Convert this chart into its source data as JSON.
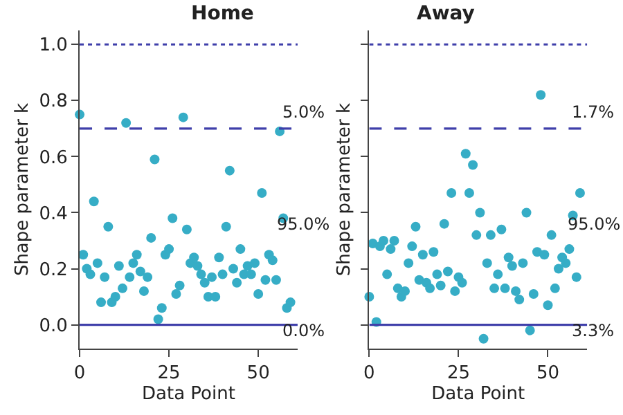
{
  "chart_data": [
    {
      "type": "scatter",
      "title": "Home",
      "xlabel": "Data Point",
      "ylabel": "Shape parameter k",
      "color": "#36adc6",
      "marker": "circle",
      "x": [
        0,
        1,
        2,
        3,
        4,
        5,
        6,
        7,
        8,
        9,
        10,
        11,
        12,
        13,
        14,
        15,
        16,
        17,
        18,
        19,
        20,
        21,
        22,
        23,
        24,
        25,
        26,
        27,
        28,
        29,
        30,
        31,
        32,
        33,
        34,
        35,
        36,
        37,
        38,
        39,
        40,
        41,
        42,
        43,
        44,
        45,
        46,
        47,
        48,
        49,
        50,
        51,
        52,
        53,
        54,
        55,
        56,
        57,
        58,
        59
      ],
      "values": [
        0.75,
        0.25,
        0.2,
        0.18,
        0.44,
        0.22,
        0.08,
        0.17,
        0.35,
        0.08,
        0.1,
        0.21,
        0.13,
        0.72,
        0.17,
        0.22,
        0.25,
        0.19,
        0.12,
        0.17,
        0.31,
        0.59,
        0.02,
        0.06,
        0.25,
        0.27,
        0.38,
        0.11,
        0.14,
        0.74,
        0.34,
        0.22,
        0.24,
        0.21,
        0.18,
        0.15,
        0.1,
        0.17,
        0.1,
        0.24,
        0.18,
        0.35,
        0.55,
        0.2,
        0.15,
        0.27,
        0.18,
        0.21,
        0.18,
        0.22,
        0.11,
        0.47,
        0.16,
        0.25,
        0.23,
        0.16,
        0.69,
        0.38,
        0.06,
        0.08
      ],
      "xlim": [
        0,
        61
      ],
      "ylim": [
        -0.085,
        1.05
      ],
      "xticks": [
        0,
        25,
        50
      ],
      "yticks": [
        {
          "value": 0,
          "label": "0.0"
        },
        {
          "value": 0.2,
          "label": "0.2"
        },
        {
          "value": 0.4,
          "label": "0.4"
        },
        {
          "value": 0.6,
          "label": "0.6"
        },
        {
          "value": 0.8,
          "label": "0.8"
        },
        {
          "value": 1.0,
          "label": "1.0"
        }
      ],
      "ref_lines": [
        {
          "axis": "y",
          "value": 1.0,
          "color": "#3f3faa",
          "line_style": "dotted"
        },
        {
          "axis": "y",
          "value": 0.7,
          "color": "#3f3faa",
          "line_style": "dashed"
        },
        {
          "axis": "y",
          "value": 0,
          "color": "#3f3faa",
          "line_style": "solid"
        }
      ],
      "annotations": [
        "5.0%",
        "95.0%",
        "0.0%"
      ]
    },
    {
      "type": "scatter",
      "title": "Away",
      "xlabel": "Data Point",
      "ylabel": "Shape parameter k",
      "color": "#36adc6",
      "marker": "circle",
      "tick_labels": "x",
      "x": [
        0,
        1,
        2,
        3,
        4,
        5,
        6,
        7,
        8,
        9,
        10,
        11,
        12,
        13,
        14,
        15,
        16,
        17,
        18,
        19,
        20,
        21,
        22,
        23,
        24,
        25,
        26,
        27,
        28,
        29,
        30,
        31,
        32,
        33,
        34,
        35,
        36,
        37,
        38,
        39,
        40,
        41,
        42,
        43,
        44,
        45,
        46,
        47,
        48,
        49,
        50,
        51,
        52,
        53,
        54,
        55,
        56,
        57,
        58,
        59
      ],
      "values": [
        0.1,
        0.29,
        0.01,
        0.28,
        0.3,
        0.18,
        0.27,
        0.3,
        0.13,
        0.1,
        0.12,
        0.22,
        0.28,
        0.35,
        0.16,
        0.25,
        0.15,
        0.13,
        0.26,
        0.18,
        0.14,
        0.36,
        0.19,
        0.47,
        0.12,
        0.17,
        0.15,
        0.61,
        0.47,
        0.57,
        0.32,
        0.4,
        -0.05,
        0.22,
        0.32,
        0.13,
        0.18,
        0.34,
        0.13,
        0.24,
        0.21,
        0.12,
        0.09,
        0.22,
        0.4,
        -0.02,
        0.11,
        0.26,
        0.82,
        0.25,
        0.07,
        0.32,
        0.13,
        0.2,
        0.24,
        0.22,
        0.27,
        0.39,
        0.17,
        0.47
      ],
      "xlim": [
        0,
        61
      ],
      "ylim": [
        -0.085,
        1.05
      ],
      "xticks": [
        0,
        25,
        50
      ],
      "yticks": [
        {
          "value": 0,
          "label": null
        },
        {
          "value": 0.2,
          "label": null
        },
        {
          "value": 0.4,
          "label": null
        },
        {
          "value": 0.6,
          "label": null
        },
        {
          "value": 0.8,
          "label": null
        },
        {
          "value": 1.0,
          "label": null
        }
      ],
      "ref_lines": [
        {
          "axis": "y",
          "value": 1.0,
          "color": "#3f3faa",
          "line_style": "dotted"
        },
        {
          "axis": "y",
          "value": 0.7,
          "color": "#3f3faa",
          "line_style": "dashed"
        },
        {
          "axis": "y",
          "value": 0,
          "color": "#3f3faa",
          "line_style": "solid"
        }
      ],
      "annotations": [
        "1.7%",
        "95.0%",
        "3.3%"
      ]
    }
  ]
}
